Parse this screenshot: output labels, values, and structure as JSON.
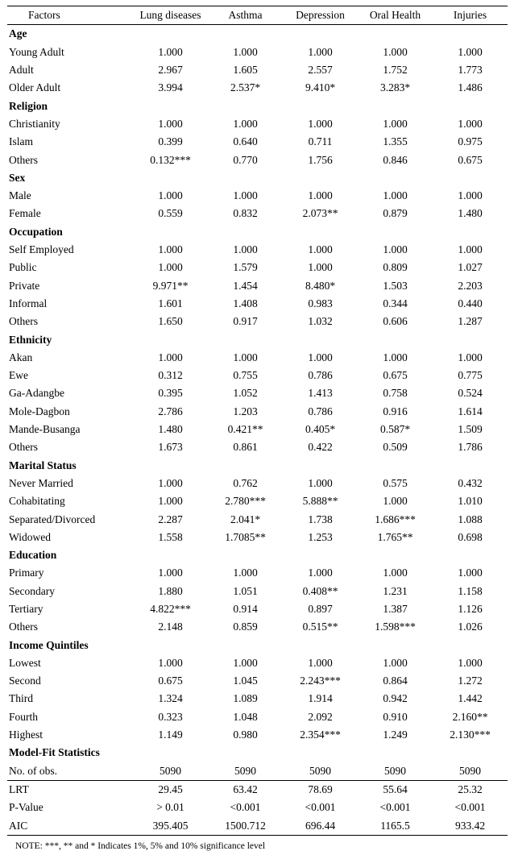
{
  "table": {
    "columns": [
      "Factors",
      "Lung diseases",
      "Asthma",
      "Depression",
      "Oral Health",
      "Injuries"
    ],
    "sections": [
      {
        "title": "Age",
        "rows": [
          {
            "label": "Young Adult",
            "values": [
              "1.000",
              "1.000",
              "1.000",
              "1.000",
              "1.000"
            ]
          },
          {
            "label": "Adult",
            "values": [
              "2.967",
              "1.605",
              "2.557",
              "1.752",
              "1.773"
            ]
          },
          {
            "label": "Older Adult",
            "values": [
              "3.994",
              "2.537*",
              "9.410*",
              "3.283*",
              "1.486"
            ]
          }
        ]
      },
      {
        "title": "Religion",
        "rows": [
          {
            "label": "Christianity",
            "values": [
              "1.000",
              "1.000",
              "1.000",
              "1.000",
              "1.000"
            ]
          },
          {
            "label": "Islam",
            "values": [
              "0.399",
              "0.640",
              "0.711",
              "1.355",
              "0.975"
            ]
          },
          {
            "label": "Others",
            "values": [
              "0.132***",
              "0.770",
              "1.756",
              "0.846",
              "0.675"
            ]
          }
        ]
      },
      {
        "title": "Sex",
        "rows": [
          {
            "label": "Male",
            "values": [
              "1.000",
              "1.000",
              "1.000",
              "1.000",
              "1.000"
            ]
          },
          {
            "label": "Female",
            "values": [
              "0.559",
              "0.832",
              "2.073**",
              "0.879",
              "1.480"
            ]
          }
        ]
      },
      {
        "title": "Occupation",
        "rows": [
          {
            "label": "Self Employed",
            "values": [
              "1.000",
              "1.000",
              "1.000",
              "1.000",
              "1.000"
            ]
          },
          {
            "label": "Public",
            "values": [
              "1.000",
              "1.579",
              "1.000",
              "0.809",
              "1.027"
            ]
          },
          {
            "label": "Private",
            "values": [
              "9.971**",
              "1.454",
              "8.480*",
              "1.503",
              "2.203"
            ]
          },
          {
            "label": "Informal",
            "values": [
              "1.601",
              "1.408",
              "0.983",
              "0.344",
              "0.440"
            ]
          },
          {
            "label": "Others",
            "values": [
              "1.650",
              "0.917",
              "1.032",
              "0.606",
              "1.287"
            ]
          }
        ]
      },
      {
        "title": "Ethnicity",
        "rows": [
          {
            "label": "Akan",
            "values": [
              "1.000",
              "1.000",
              "1.000",
              "1.000",
              "1.000"
            ]
          },
          {
            "label": "Ewe",
            "values": [
              "0.312",
              "0.755",
              "0.786",
              "0.675",
              "0.775"
            ]
          },
          {
            "label": "Ga-Adangbe",
            "values": [
              "0.395",
              "1.052",
              "1.413",
              "0.758",
              "0.524"
            ]
          },
          {
            "label": "Mole-Dagbon",
            "values": [
              "2.786",
              "1.203",
              "0.786",
              "0.916",
              "1.614"
            ]
          },
          {
            "label": "Mande-Busanga",
            "values": [
              "1.480",
              "0.421**",
              "0.405*",
              "0.587*",
              "1.509"
            ]
          },
          {
            "label": "Others",
            "values": [
              "1.673",
              "0.861",
              "0.422",
              "0.509",
              "1.786"
            ]
          }
        ]
      },
      {
        "title": "Marital Status",
        "rows": [
          {
            "label": "Never Married",
            "values": [
              "1.000",
              "0.762",
              "1.000",
              "0.575",
              "0.432"
            ]
          },
          {
            "label": "Cohabitating",
            "values": [
              "1.000",
              "2.780***",
              "5.888**",
              "1.000",
              "1.010"
            ]
          },
          {
            "label": "Separated/Divorced",
            "values": [
              "2.287",
              "2.041*",
              "1.738",
              "1.686***",
              "1.088"
            ]
          },
          {
            "label": "Widowed",
            "values": [
              "1.558",
              "1.7085**",
              "1.253",
              "1.765**",
              "0.698"
            ]
          }
        ]
      },
      {
        "title": "Education",
        "rows": [
          {
            "label": "Primary",
            "values": [
              "1.000",
              "1.000",
              "1.000",
              "1.000",
              "1.000"
            ]
          },
          {
            "label": "Secondary",
            "values": [
              "1.880",
              "1.051",
              "0.408**",
              "1.231",
              "1.158"
            ]
          },
          {
            "label": "Tertiary",
            "values": [
              "4.822***",
              "0.914",
              "0.897",
              "1.387",
              "1.126"
            ]
          },
          {
            "label": "Others",
            "values": [
              "2.148",
              "0.859",
              "0.515**",
              "1.598***",
              "1.026"
            ]
          }
        ]
      },
      {
        "title": "Income Quintiles",
        "rows": [
          {
            "label": "Lowest",
            "values": [
              "1.000",
              "1.000",
              "1.000",
              "1.000",
              "1.000"
            ]
          },
          {
            "label": "Second",
            "values": [
              "0.675",
              "1.045",
              "2.243***",
              "0.864",
              "1.272"
            ]
          },
          {
            "label": "Third",
            "values": [
              "1.324",
              "1.089",
              "1.914",
              "0.942",
              "1.442"
            ]
          },
          {
            "label": "Fourth",
            "values": [
              "0.323",
              "1.048",
              "2.092",
              "0.910",
              "2.160**"
            ]
          },
          {
            "label": "Highest",
            "values": [
              "1.149",
              "0.980",
              "2.354***",
              "1.249",
              "2.130***"
            ]
          }
        ]
      },
      {
        "title": "Model-Fit Statistics",
        "rows": [
          {
            "label": "No. of obs.",
            "values": [
              "5090",
              "5090",
              "5090",
              "5090",
              "5090"
            ]
          },
          {
            "label": "LRT",
            "values": [
              "29.45",
              "63.42",
              "78.69",
              "55.64",
              "25.32"
            ],
            "divider_before": true
          },
          {
            "label": "P-Value",
            "values": [
              "> 0.01",
              "<0.001",
              "<0.001",
              "<0.001",
              "<0.001"
            ]
          },
          {
            "label": "AIC",
            "values": [
              "395.405",
              "1500.712",
              "696.44",
              "1165.5",
              "933.42"
            ]
          }
        ]
      }
    ],
    "note": "NOTE: ***, ** and * Indicates 1%, 5% and 10% significance level"
  }
}
